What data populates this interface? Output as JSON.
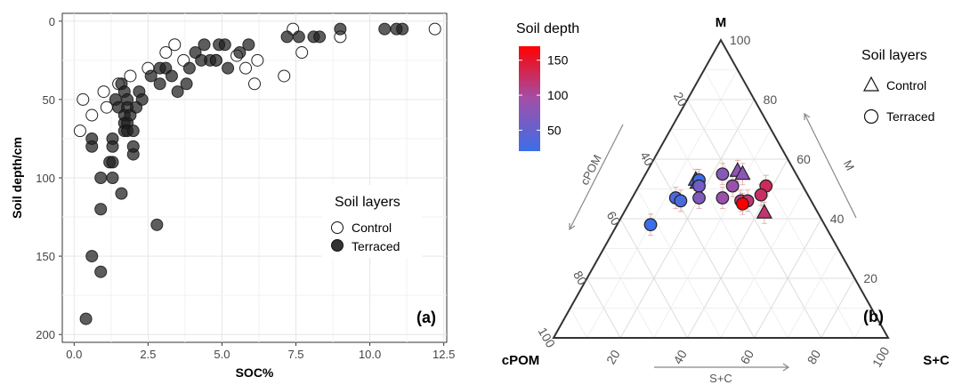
{
  "chart_data": [
    {
      "type": "scatter",
      "panel_label": "(a)",
      "xlabel": "SOC%",
      "ylabel": "Soil depth/cm",
      "xlim": [
        -0.4,
        12.6
      ],
      "ylim": [
        -5,
        205
      ],
      "y_reversed": true,
      "x_ticks": [
        "0.0",
        "2.5",
        "5.0",
        "7.5",
        "10.0",
        "12.5"
      ],
      "x_tick_values": [
        0,
        2.5,
        5,
        7.5,
        10,
        12.5
      ],
      "y_ticks": [
        "0",
        "50",
        "100",
        "150",
        "200"
      ],
      "y_tick_values": [
        0,
        50,
        100,
        150,
        200
      ],
      "grid": true,
      "legend": {
        "title": "Soil layers",
        "placement": "right",
        "entries": [
          "Control",
          "Terraced"
        ]
      },
      "series": [
        {
          "name": "Control",
          "marker": "open-circle",
          "points": [
            [
              0.2,
              70
            ],
            [
              0.3,
              50
            ],
            [
              0.6,
              60
            ],
            [
              1.0,
              45
            ],
            [
              1.1,
              55
            ],
            [
              1.5,
              40
            ],
            [
              1.9,
              35
            ],
            [
              2.5,
              30
            ],
            [
              3.1,
              20
            ],
            [
              3.4,
              15
            ],
            [
              3.7,
              25
            ],
            [
              4.8,
              25
            ],
            [
              5.5,
              22
            ],
            [
              5.8,
              30
            ],
            [
              6.1,
              40
            ],
            [
              6.2,
              25
            ],
            [
              7.1,
              35
            ],
            [
              7.4,
              5
            ],
            [
              7.7,
              20
            ],
            [
              9.0,
              10
            ],
            [
              12.2,
              5
            ]
          ]
        },
        {
          "name": "Terraced",
          "marker": "filled-circle",
          "points": [
            [
              0.4,
              190
            ],
            [
              0.6,
              150
            ],
            [
              0.6,
              80
            ],
            [
              0.6,
              75
            ],
            [
              0.9,
              160
            ],
            [
              0.9,
              120
            ],
            [
              0.9,
              100
            ],
            [
              1.2,
              90
            ],
            [
              1.3,
              90
            ],
            [
              1.3,
              75
            ],
            [
              1.3,
              80
            ],
            [
              1.3,
              100
            ],
            [
              1.4,
              50
            ],
            [
              1.5,
              55
            ],
            [
              1.6,
              110
            ],
            [
              1.6,
              40
            ],
            [
              1.7,
              45
            ],
            [
              1.7,
              65
            ],
            [
              1.7,
              60
            ],
            [
              1.7,
              70
            ],
            [
              1.8,
              50
            ],
            [
              1.8,
              55
            ],
            [
              1.8,
              65
            ],
            [
              1.8,
              70
            ],
            [
              1.9,
              60
            ],
            [
              2.0,
              85
            ],
            [
              2.0,
              80
            ],
            [
              2.0,
              70
            ],
            [
              2.1,
              55
            ],
            [
              2.2,
              45
            ],
            [
              2.3,
              50
            ],
            [
              2.8,
              130
            ],
            [
              2.6,
              35
            ],
            [
              2.9,
              40
            ],
            [
              2.9,
              30
            ],
            [
              3.1,
              30
            ],
            [
              3.3,
              35
            ],
            [
              3.5,
              45
            ],
            [
              3.8,
              40
            ],
            [
              3.9,
              30
            ],
            [
              4.1,
              20
            ],
            [
              4.3,
              25
            ],
            [
              4.4,
              15
            ],
            [
              4.6,
              25
            ],
            [
              4.8,
              25
            ],
            [
              4.9,
              15
            ],
            [
              5.1,
              15
            ],
            [
              5.2,
              30
            ],
            [
              5.6,
              20
            ],
            [
              5.9,
              15
            ],
            [
              7.2,
              10
            ],
            [
              7.6,
              10
            ],
            [
              8.1,
              10
            ],
            [
              8.3,
              10
            ],
            [
              9.0,
              5
            ],
            [
              10.5,
              5
            ],
            [
              10.9,
              5
            ],
            [
              11.1,
              5
            ]
          ]
        }
      ]
    },
    {
      "type": "ternary",
      "panel_label": "(b)",
      "axes": {
        "top": "M",
        "left": "cPOM",
        "right": "S+C"
      },
      "axis_titles": {
        "top_side": "M",
        "left_side": "cPOM",
        "bottom_side": "S+C"
      },
      "ticks": [
        "20",
        "40",
        "60",
        "80",
        "100"
      ],
      "tick_values": [
        20,
        40,
        60,
        80,
        100
      ],
      "grid": true,
      "color_scale": {
        "title": "Soil depth",
        "min": 20,
        "max": 170,
        "ticks": [
          50,
          100,
          150
        ],
        "tick_labels": [
          "50",
          "100",
          "150"
        ],
        "low_color": "#3b6ee8",
        "high_color": "#ff0000"
      },
      "legend": {
        "title": "Soil layers",
        "placement": "right",
        "entries": [
          "Control",
          "Terraced"
        ]
      },
      "series": [
        {
          "name": "Control",
          "marker": "triangle",
          "points": [
            {
              "M": 53,
              "SC": 16,
              "depth": 40
            },
            {
              "M": 52,
              "SC": 17,
              "depth": 35
            },
            {
              "M": 56,
              "SC": 27,
              "depth": 80
            },
            {
              "M": 55,
              "SC": 29,
              "depth": 80
            },
            {
              "M": 42,
              "SC": 42,
              "depth": 120
            }
          ]
        },
        {
          "name": "Terraced",
          "marker": "circle",
          "points": [
            {
              "M": 53,
              "SC": 17,
              "depth": 20
            },
            {
              "M": 47,
              "SC": 13,
              "depth": 30
            },
            {
              "M": 46,
              "SC": 15,
              "depth": 30
            },
            {
              "M": 38,
              "SC": 10,
              "depth": 20
            },
            {
              "M": 51,
              "SC": 18,
              "depth": 60
            },
            {
              "M": 55,
              "SC": 23,
              "depth": 75
            },
            {
              "M": 47,
              "SC": 20,
              "depth": 70
            },
            {
              "M": 51,
              "SC": 28,
              "depth": 90
            },
            {
              "M": 47,
              "SC": 27,
              "depth": 90
            },
            {
              "M": 46,
              "SC": 33,
              "depth": 110
            },
            {
              "M": 46,
              "SC": 35,
              "depth": 120
            },
            {
              "M": 51,
              "SC": 38,
              "depth": 130
            },
            {
              "M": 45,
              "SC": 34,
              "depth": 170
            },
            {
              "M": 48,
              "SC": 38,
              "depth": 125
            }
          ]
        }
      ]
    }
  ]
}
